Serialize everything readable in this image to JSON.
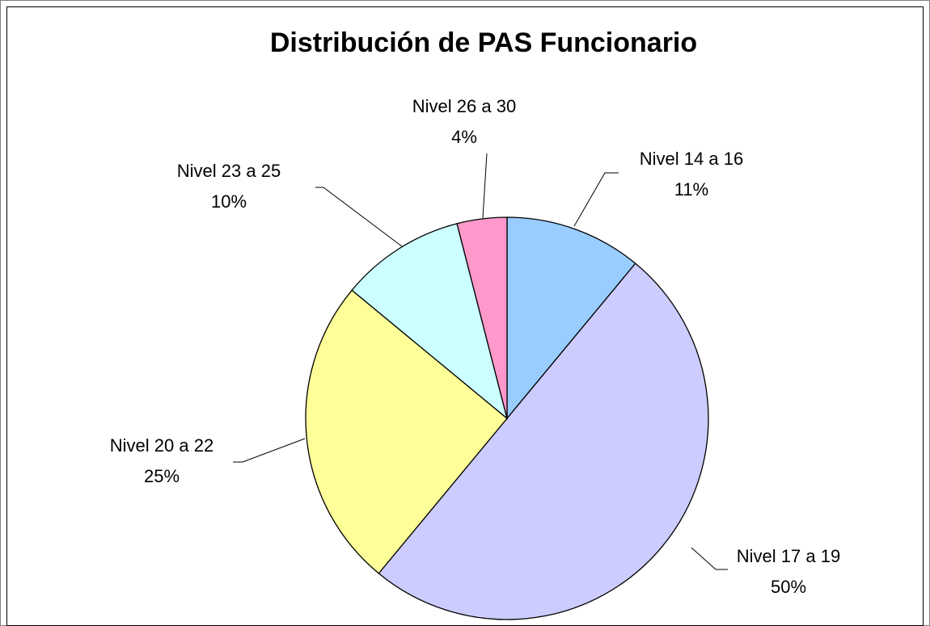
{
  "chart_data": {
    "type": "pie",
    "title": "Distribución de PAS Funcionario",
    "categories": [
      "Nivel 14 a 16",
      "Nivel 17 a 19",
      "Nivel 20 a 22",
      "Nivel 23 a 25",
      "Nivel 26 a 30"
    ],
    "values": [
      11,
      50,
      25,
      10,
      4
    ],
    "value_labels": [
      "11%",
      "50%",
      "25%",
      "10%",
      "4%"
    ],
    "colors": [
      "#99ccff",
      "#ccccff",
      "#ffff99",
      "#ccffff",
      "#ff99cc"
    ]
  }
}
